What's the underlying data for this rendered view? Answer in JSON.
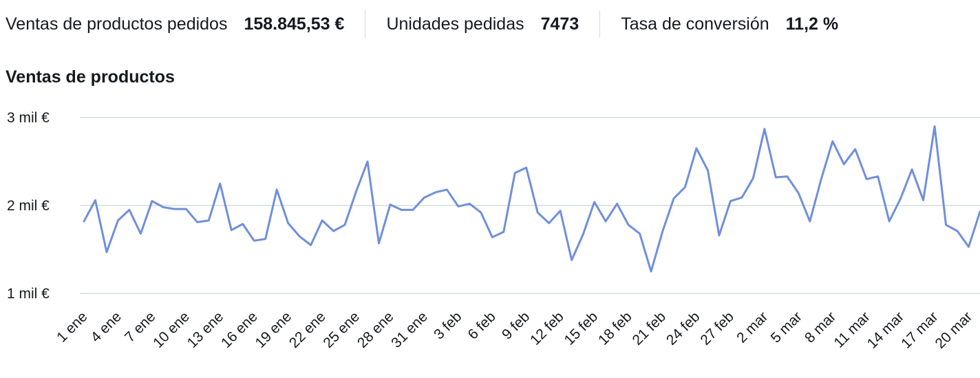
{
  "metrics": [
    {
      "label": "Ventas de productos pedidos",
      "value": "158.845,53 €"
    },
    {
      "label": "Unidades pedidas",
      "value": "7473"
    },
    {
      "label": "Tasa de conversión",
      "value": "11,2 %"
    }
  ],
  "chart_data": {
    "type": "line",
    "title": "Ventas de productos",
    "xlabel": "",
    "ylabel": "",
    "ylim": [
      1000,
      3000
    ],
    "grid": true,
    "y_ticks": [
      {
        "value": 3000,
        "label": "3 mil €"
      },
      {
        "value": 2000,
        "label": "2 mil €"
      },
      {
        "value": 1000,
        "label": "1 mil €"
      }
    ],
    "x_tick_labels": [
      "1 ene",
      "4 ene",
      "7 ene",
      "10 ene",
      "13 ene",
      "16 ene",
      "19 ene",
      "22 ene",
      "25 ene",
      "28 ene",
      "31 ene",
      "3 feb",
      "6 feb",
      "9 feb",
      "12 feb",
      "15 feb",
      "18 feb",
      "21 feb",
      "24 feb",
      "27 feb",
      "2 mar",
      "5 mar",
      "8 mar",
      "11 mar",
      "14 mar",
      "17 mar",
      "20 mar"
    ],
    "series": [
      {
        "name": "Ventas de productos",
        "color": "#6f8fdc",
        "values": [
          1820,
          2060,
          1470,
          1830,
          1950,
          1680,
          2050,
          1980,
          1960,
          1960,
          1810,
          1830,
          2250,
          1720,
          1790,
          1600,
          1620,
          2180,
          1800,
          1650,
          1550,
          1830,
          1710,
          1780,
          2160,
          2500,
          1570,
          2010,
          1950,
          1950,
          2090,
          2150,
          2180,
          1990,
          2020,
          1920,
          1640,
          1700,
          2370,
          2430,
          1920,
          1800,
          1940,
          1380,
          1670,
          2040,
          1820,
          2020,
          1780,
          1680,
          1250,
          1700,
          2080,
          2210,
          2650,
          2400,
          1660,
          2050,
          2090,
          2310,
          2870,
          2320,
          2330,
          2140,
          1820,
          2300,
          2730,
          2470,
          2640,
          2300,
          2330,
          1820,
          2080,
          2410,
          2060,
          2900,
          1780,
          1710,
          1530,
          1930
        ]
      }
    ]
  }
}
